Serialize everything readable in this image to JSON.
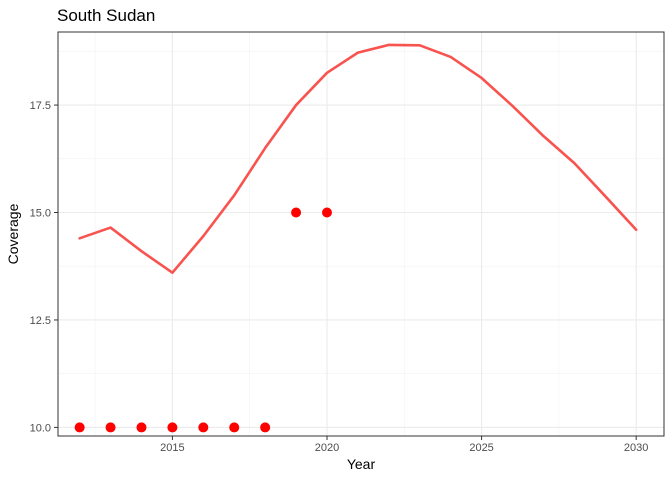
{
  "chart_data": {
    "type": "line",
    "title": "South Sudan",
    "xlabel": "Year",
    "ylabel": "Coverage",
    "xlim": [
      2011.3,
      2030.9
    ],
    "ylim": [
      9.8,
      19.2
    ],
    "x_ticks": [
      2015,
      2020,
      2025,
      2030
    ],
    "y_ticks": [
      10.0,
      12.5,
      15.0,
      17.5
    ],
    "x_tick_labels": [
      "2015",
      "2020",
      "2025",
      "2030"
    ],
    "y_tick_labels": [
      "10.0",
      "12.5",
      "15.0",
      "17.5"
    ],
    "grid": true,
    "legend": "none",
    "series": [
      {
        "type": "line",
        "color": "#F8534F",
        "x": [
          2012,
          2013,
          2014,
          2015,
          2016,
          2017,
          2018,
          2019,
          2020,
          2021,
          2022,
          2023,
          2024,
          2025,
          2026,
          2027,
          2028,
          2029,
          2030
        ],
        "y": [
          14.4,
          14.65,
          14.1,
          13.6,
          14.45,
          15.4,
          16.5,
          17.5,
          18.25,
          18.72,
          18.9,
          18.89,
          18.62,
          18.13,
          17.48,
          16.78,
          16.15,
          15.38,
          14.6
        ]
      },
      {
        "type": "scatter",
        "color": "#FF0000",
        "x": [
          2012,
          2013,
          2014,
          2015,
          2016,
          2017,
          2018,
          2019,
          2020
        ],
        "y": [
          10,
          10,
          10,
          10,
          10,
          10,
          10,
          15,
          15
        ]
      }
    ]
  }
}
